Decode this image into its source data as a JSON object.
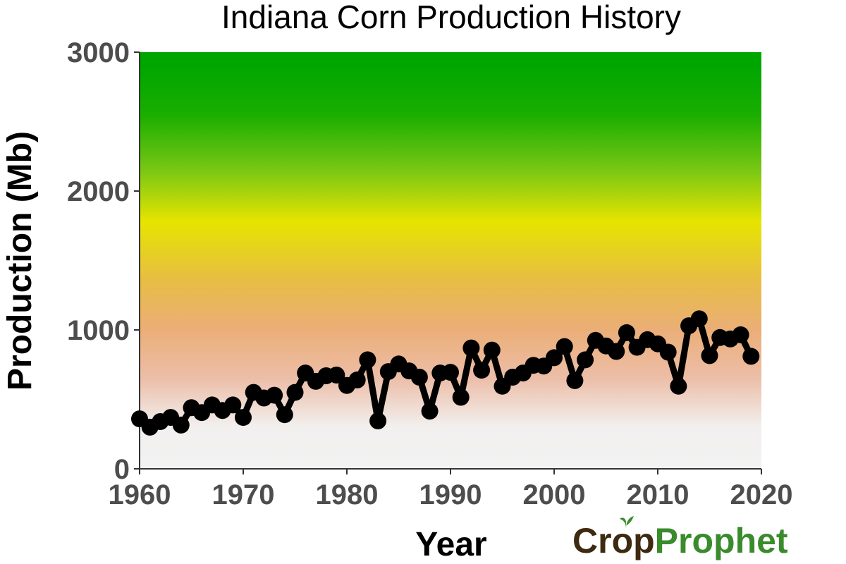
{
  "chart_data": {
    "type": "line",
    "title": "Indiana Corn Production History",
    "xlabel": "Year",
    "ylabel": "Production (Mb)",
    "xlim": [
      1960,
      2020
    ],
    "ylim": [
      0,
      3000
    ],
    "xticks": [
      "1960",
      "1970",
      "1980",
      "1990",
      "2000",
      "2010",
      "2020"
    ],
    "yticks": [
      "0",
      "1000",
      "2000",
      "3000"
    ],
    "grid": false,
    "background_gradient": [
      {
        "value": 0,
        "color": "#f2f2f2"
      },
      {
        "value": 300,
        "color": "#f2f0ef"
      },
      {
        "value": 650,
        "color": "#ecbea8"
      },
      {
        "value": 1000,
        "color": "#ebae78"
      },
      {
        "value": 1350,
        "color": "#e7bd45"
      },
      {
        "value": 1780,
        "color": "#e6e400"
      },
      {
        "value": 2150,
        "color": "#79c714"
      },
      {
        "value": 2550,
        "color": "#1aae00"
      },
      {
        "value": 2900,
        "color": "#00a600"
      },
      {
        "value": 3000,
        "color": "#00a600"
      }
    ],
    "line_color": "#000000",
    "series": [
      {
        "x": [
          1960,
          1961,
          1962,
          1963,
          1964,
          1965,
          1966,
          1967,
          1968,
          1969,
          1970,
          1971,
          1972,
          1973,
          1974,
          1975,
          1976,
          1977,
          1978,
          1979,
          1980,
          1981,
          1982,
          1983,
          1984,
          1985,
          1986,
          1987,
          1988,
          1989,
          1990,
          1991,
          1992,
          1993,
          1994,
          1995,
          1996,
          1997,
          1998,
          1999,
          2000,
          2001,
          2002,
          2003,
          2004,
          2005,
          2006,
          2007,
          2008,
          2009,
          2010,
          2011,
          2012,
          2013,
          2014,
          2015,
          2016,
          2017,
          2018,
          2019
        ],
        "values": [
          360,
          300,
          340,
          370,
          315,
          440,
          405,
          460,
          420,
          460,
          370,
          550,
          510,
          530,
          390,
          550,
          690,
          630,
          670,
          675,
          600,
          640,
          785,
          345,
          700,
          755,
          705,
          660,
          415,
          690,
          695,
          515,
          870,
          710,
          855,
          595,
          660,
          690,
          745,
          740,
          800,
          880,
          635,
          785,
          925,
          885,
          845,
          980,
          875,
          930,
          900,
          840,
          595,
          1030,
          1080,
          815,
          945,
          935,
          965,
          810
        ]
      }
    ]
  },
  "logo": {
    "part_a": "Cr",
    "part_b": "op",
    "part_c": "Prophet",
    "leaf_icon": "sprout-icon"
  }
}
